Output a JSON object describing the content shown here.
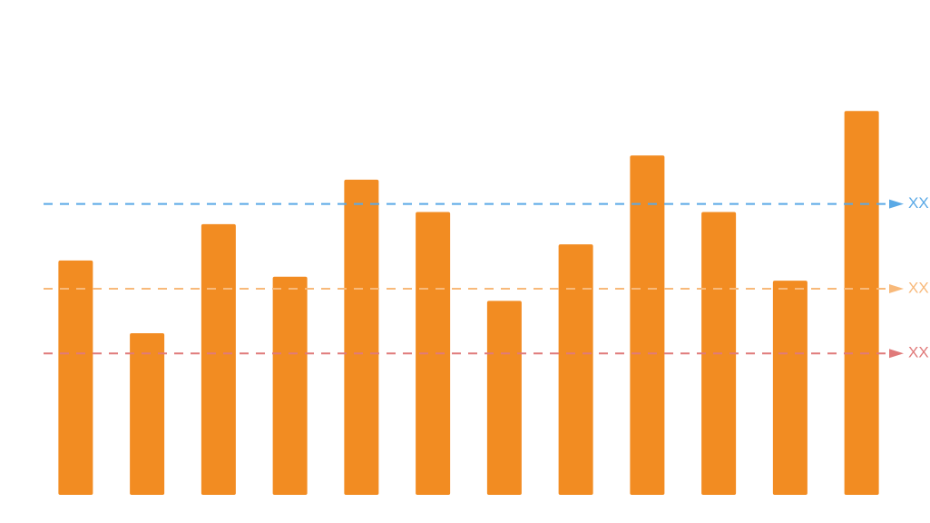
{
  "chart_data": {
    "type": "bar",
    "values": [
      58,
      40,
      67,
      54,
      78,
      70,
      48,
      62,
      84,
      70,
      53,
      95
    ],
    "color": "#f28c22",
    "ylim": [
      0,
      100
    ],
    "grid": false,
    "reference_lines": [
      {
        "value": 72,
        "label": "XX",
        "color": "#5aa9e6"
      },
      {
        "value": 51,
        "label": "XX",
        "color": "#f8b97a"
      },
      {
        "value": 35,
        "label": "XX",
        "color": "#e07a7a"
      }
    ]
  }
}
